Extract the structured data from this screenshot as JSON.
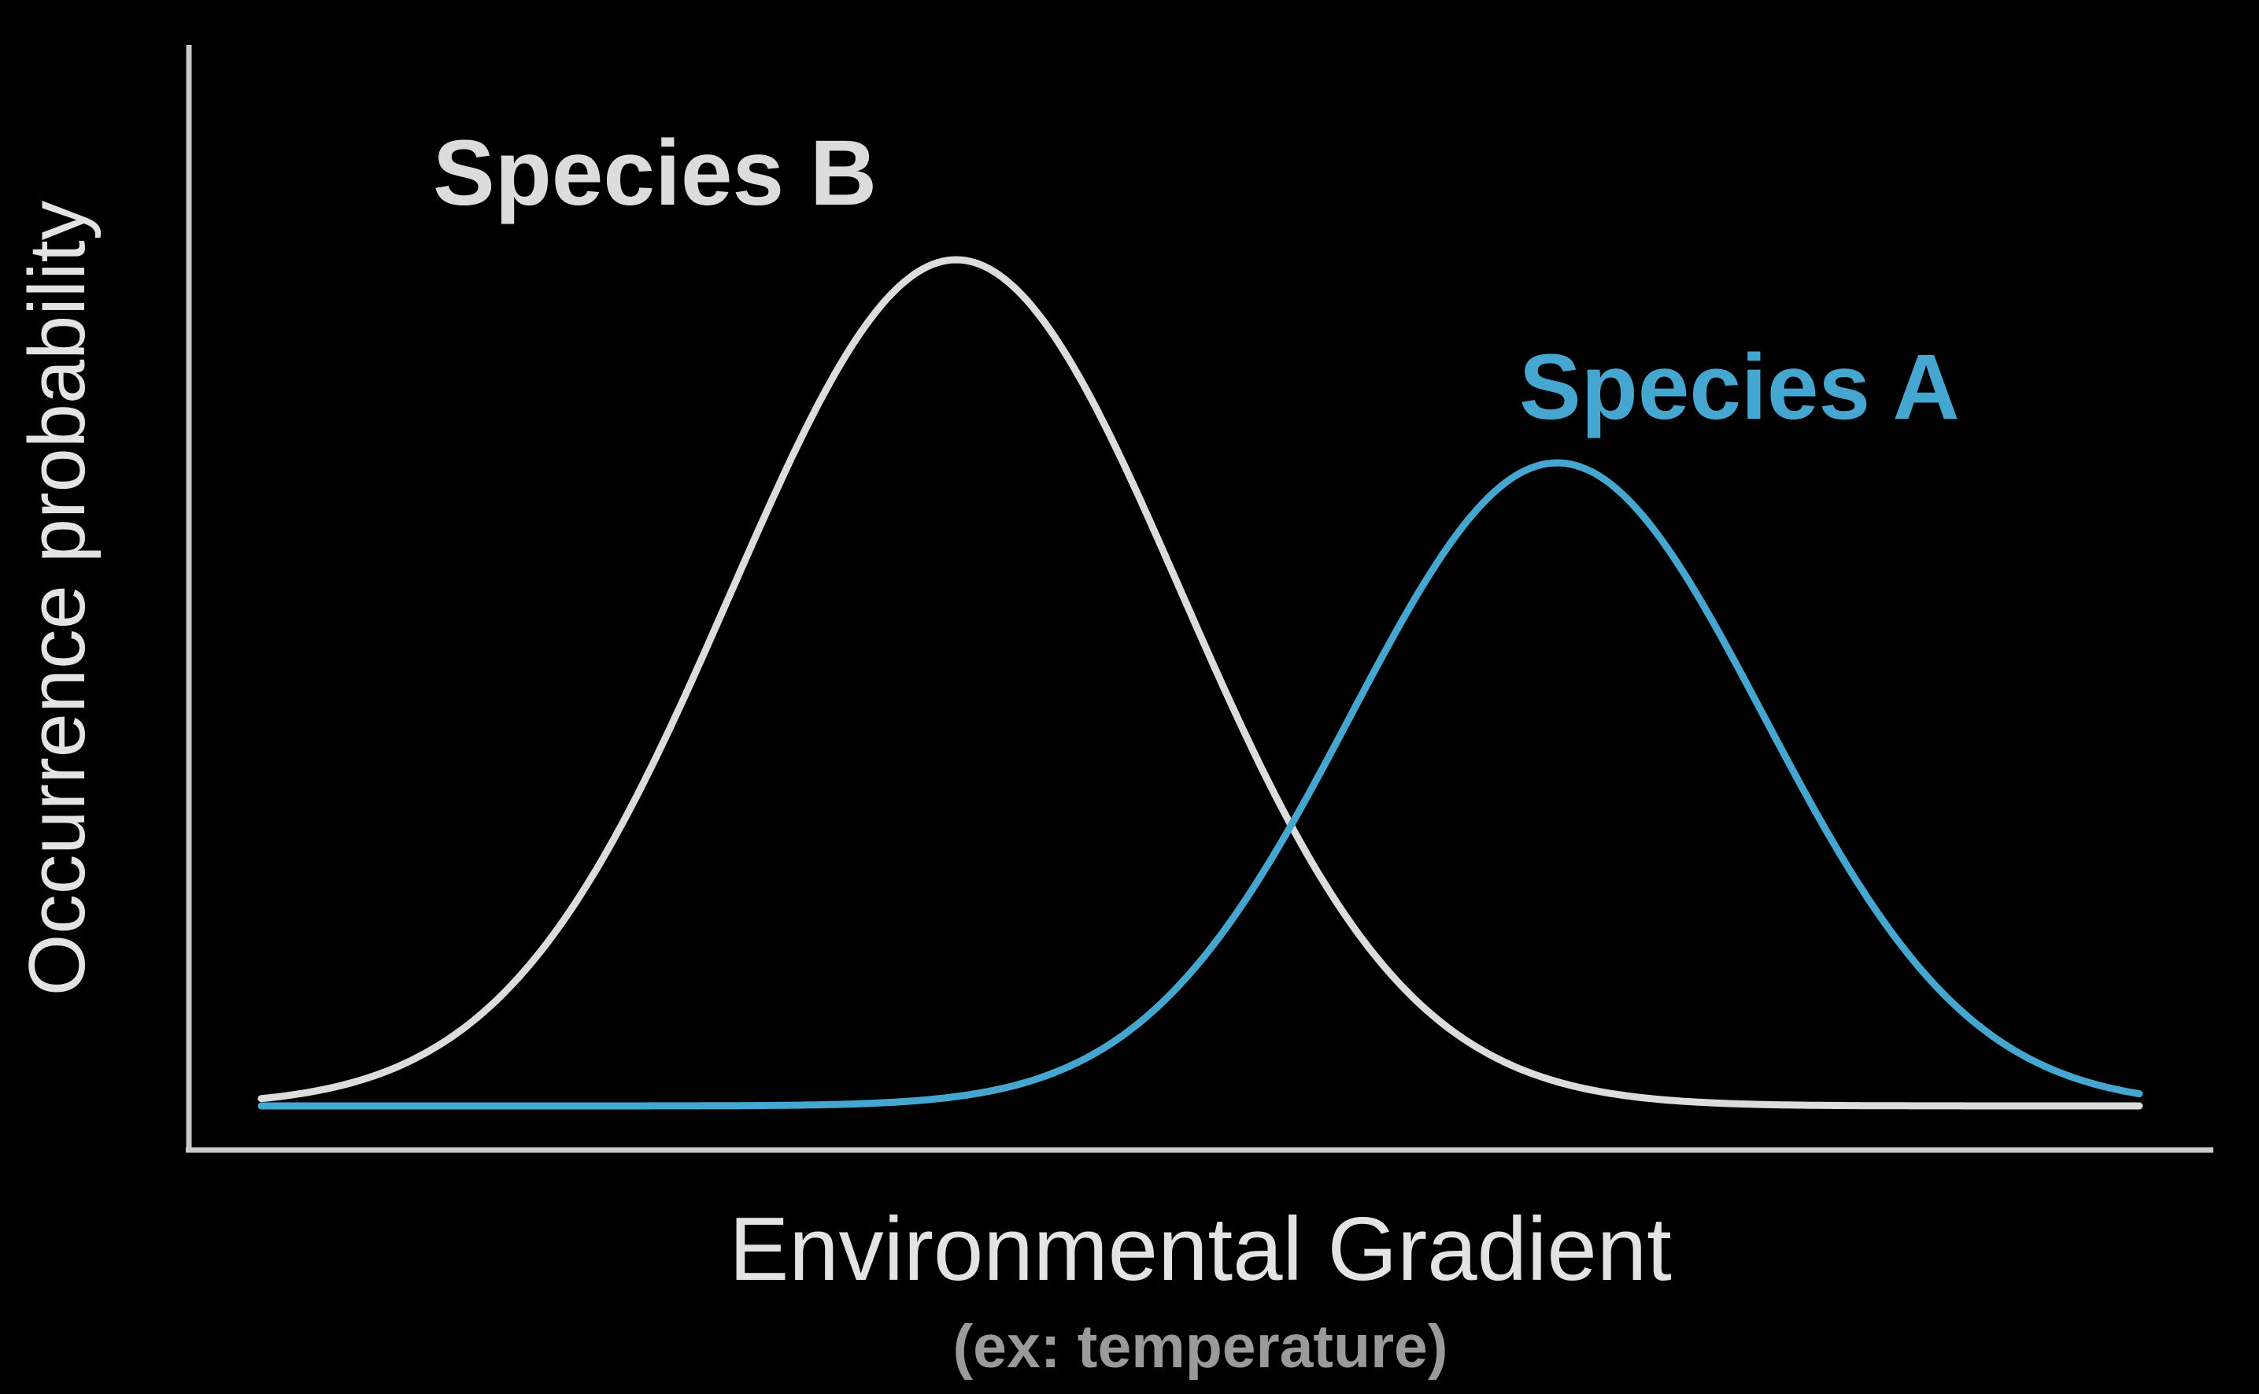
{
  "chart_data": {
    "type": "line",
    "title": "",
    "xlabel": "Environmental Gradient",
    "xlabel_note": "(ex: temperature)",
    "ylabel": "Occurrence probability",
    "xlim": [
      0,
      100
    ],
    "ylim": [
      0,
      1
    ],
    "grid": false,
    "legend": "inline",
    "series": [
      {
        "name": "Species B",
        "color": "#dcdcdc",
        "shape": "gaussian",
        "mean": 37,
        "sd": 12,
        "peak": 1.0,
        "x_range": [
          0,
          100
        ]
      },
      {
        "name": "Species A",
        "color": "#45a6cf",
        "shape": "gaussian",
        "mean": 69,
        "sd": 11,
        "peak": 0.76,
        "x_range": [
          0,
          100
        ]
      }
    ]
  },
  "colors": {
    "background": "#000000",
    "axis": "#c8c8c8",
    "ylabel": "#e3e3e3",
    "xlabel": "#e3e3e3",
    "xsublabel": "#9a9a9a"
  }
}
